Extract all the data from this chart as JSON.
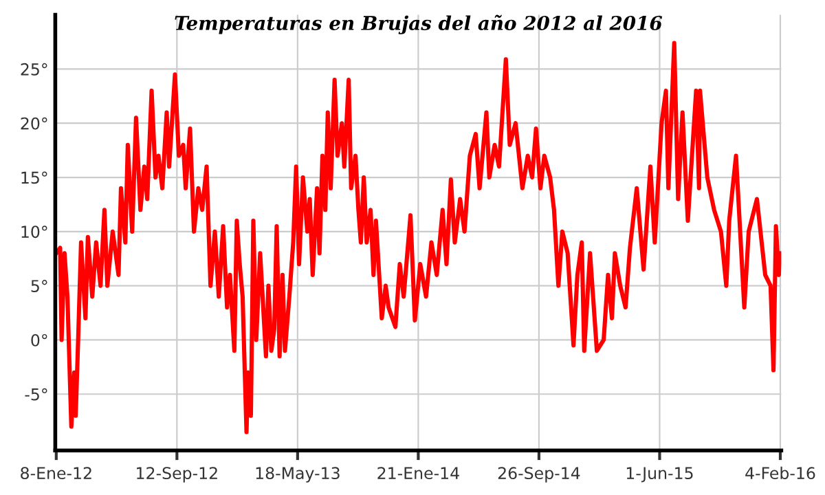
{
  "chart_data": {
    "type": "line",
    "title": "Temperaturas en Brujas del año 2012 al 2016",
    "x": [
      "2012-01-08",
      "2012-01-16",
      "2012-01-19",
      "2012-01-25",
      "2012-01-31",
      "2012-02-08",
      "2012-02-14",
      "2012-02-17",
      "2012-02-22",
      "2012-02-28",
      "2012-03-08",
      "2012-03-13",
      "2012-03-22",
      "2012-03-30",
      "2012-04-08",
      "2012-04-16",
      "2012-04-22",
      "2012-05-03",
      "2012-05-15",
      "2012-05-20",
      "2012-05-29",
      "2012-06-03",
      "2012-06-12",
      "2012-06-20",
      "2012-06-29",
      "2012-07-07",
      "2012-07-13",
      "2012-07-22",
      "2012-07-30",
      "2012-08-05",
      "2012-08-13",
      "2012-08-22",
      "2012-08-27",
      "2012-09-08",
      "2012-09-16",
      "2012-09-25",
      "2012-09-30",
      "2012-10-09",
      "2012-10-17",
      "2012-10-26",
      "2012-11-03",
      "2012-11-12",
      "2012-11-20",
      "2012-11-29",
      "2012-12-07",
      "2012-12-16",
      "2012-12-24",
      "2012-12-30",
      "2013-01-08",
      "2013-01-13",
      "2013-01-19",
      "2013-01-25",
      "2013-02-02",
      "2013-02-05",
      "2013-02-11",
      "2013-02-16",
      "2013-02-22",
      "2013-03-02",
      "2013-03-14",
      "2013-03-19",
      "2013-03-25",
      "2013-03-31",
      "2013-04-05",
      "2013-04-11",
      "2013-04-17",
      "2013-04-22",
      "2013-05-01",
      "2013-05-09",
      "2013-05-15",
      "2013-05-21",
      "2013-05-29",
      "2013-06-07",
      "2013-06-12",
      "2013-06-18",
      "2013-06-27",
      "2013-07-02",
      "2013-07-08",
      "2013-07-14",
      "2013-07-19",
      "2013-07-25",
      "2013-08-02",
      "2013-08-08",
      "2013-08-17",
      "2013-08-22",
      "2013-08-31",
      "2013-09-05",
      "2013-09-14",
      "2013-09-20",
      "2013-09-25",
      "2013-10-01",
      "2013-10-07",
      "2013-10-15",
      "2013-10-21",
      "2013-10-26",
      "2013-11-07",
      "2013-11-15",
      "2013-11-21",
      "2013-12-05",
      "2013-12-14",
      "2013-12-22",
      "2014-01-05",
      "2014-01-14",
      "2014-01-25",
      "2014-02-06",
      "2014-02-17",
      "2014-02-28",
      "2014-03-12",
      "2014-03-20",
      "2014-03-29",
      "2014-04-06",
      "2014-04-17",
      "2014-04-26",
      "2014-05-07",
      "2014-05-19",
      "2014-05-27",
      "2014-06-10",
      "2014-06-16",
      "2014-06-27",
      "2014-07-06",
      "2014-07-20",
      "2014-07-28",
      "2014-08-09",
      "2014-08-23",
      "2014-09-03",
      "2014-09-12",
      "2014-09-20",
      "2014-09-29",
      "2014-10-07",
      "2014-10-19",
      "2014-10-27",
      "2014-11-05",
      "2014-11-13",
      "2014-11-24",
      "2014-12-06",
      "2014-12-14",
      "2014-12-23",
      "2014-12-28",
      "2015-01-09",
      "2015-01-23",
      "2015-02-06",
      "2015-02-15",
      "2015-02-23",
      "2015-03-01",
      "2015-03-12",
      "2015-03-23",
      "2015-04-01",
      "2015-04-15",
      "2015-04-29",
      "2015-05-13",
      "2015-05-22",
      "2015-06-05",
      "2015-06-14",
      "2015-06-19",
      "2015-07-01",
      "2015-07-09",
      "2015-07-18",
      "2015-07-29",
      "2015-08-15",
      "2015-08-21",
      "2015-08-23",
      "2015-09-07",
      "2015-09-21",
      "2015-10-05",
      "2015-10-16",
      "2015-10-22",
      "2015-11-05",
      "2015-11-22",
      "2015-12-01",
      "2015-12-18",
      "2016-01-04",
      "2016-01-15",
      "2016-01-21",
      "2016-01-26",
      "2016-02-01",
      "2016-02-04"
    ],
    "series": [
      {
        "color": "#ff0000",
        "values": [
          8,
          8.5,
          0,
          8,
          4,
          -8,
          -3,
          -7,
          0,
          9,
          2,
          9.5,
          4,
          9,
          5,
          12,
          5,
          10,
          6,
          14,
          9,
          18,
          10,
          20.5,
          12,
          16,
          13,
          23,
          15,
          17,
          14,
          21,
          16,
          24.5,
          17,
          18,
          14,
          19.5,
          10,
          14,
          12,
          16,
          5,
          10,
          4,
          10.5,
          3,
          6,
          -1,
          11,
          7,
          4,
          -8.5,
          -3,
          -7,
          11,
          0,
          8,
          -1.5,
          5,
          -1,
          1,
          10.5,
          -1.5,
          6,
          -1,
          4,
          9,
          16,
          7,
          15,
          10,
          13,
          6,
          14,
          8,
          17,
          12,
          21,
          14,
          24,
          17,
          20,
          16,
          24,
          14,
          17,
          12,
          9,
          15,
          9,
          12,
          6,
          11,
          2,
          5,
          3,
          1.2,
          7,
          4,
          11.5,
          1.8,
          7,
          4,
          9,
          6,
          12,
          7,
          14.8,
          9,
          13,
          10,
          17,
          19,
          14,
          21,
          15,
          18,
          16,
          25.9,
          18,
          20,
          14,
          17,
          15,
          19.5,
          14,
          17,
          15,
          12,
          5,
          10,
          8,
          -0.5,
          6,
          9,
          -1,
          8,
          -1,
          0,
          6,
          2,
          8,
          5,
          3,
          8.5,
          14,
          6.5,
          16,
          9,
          20,
          23,
          14,
          27.4,
          13,
          21,
          11,
          23,
          14,
          23,
          15,
          12,
          10,
          5,
          11,
          17,
          3,
          10,
          13,
          6,
          5,
          -2.8,
          10.5,
          6,
          8
        ]
      }
    ],
    "xlim": [
      "2012-01-06",
      "2016-02-06"
    ],
    "ylim": [
      -10.2,
      30
    ],
    "xticks": [
      {
        "value": "2012-01-08",
        "label": "8-Ene-12"
      },
      {
        "value": "2012-09-12",
        "label": "12-Sep-12"
      },
      {
        "value": "2013-05-18",
        "label": "18-May-13"
      },
      {
        "value": "2014-01-21",
        "label": "21-Ene-14"
      },
      {
        "value": "2014-09-26",
        "label": "26-Sep-14"
      },
      {
        "value": "2015-06-01",
        "label": "1-Jun-15"
      },
      {
        "value": "2016-02-04",
        "label": "4-Feb-16"
      }
    ],
    "yticks": [
      {
        "value": -5,
        "label": "-5°"
      },
      {
        "value": 0,
        "label": "0°"
      },
      {
        "value": 5,
        "label": "5°"
      },
      {
        "value": 10,
        "label": "10°"
      },
      {
        "value": 15,
        "label": "15°"
      },
      {
        "value": 20,
        "label": "20°"
      },
      {
        "value": 25,
        "label": "25°"
      }
    ],
    "grid": true,
    "marker": "none",
    "line_style": "solid"
  }
}
